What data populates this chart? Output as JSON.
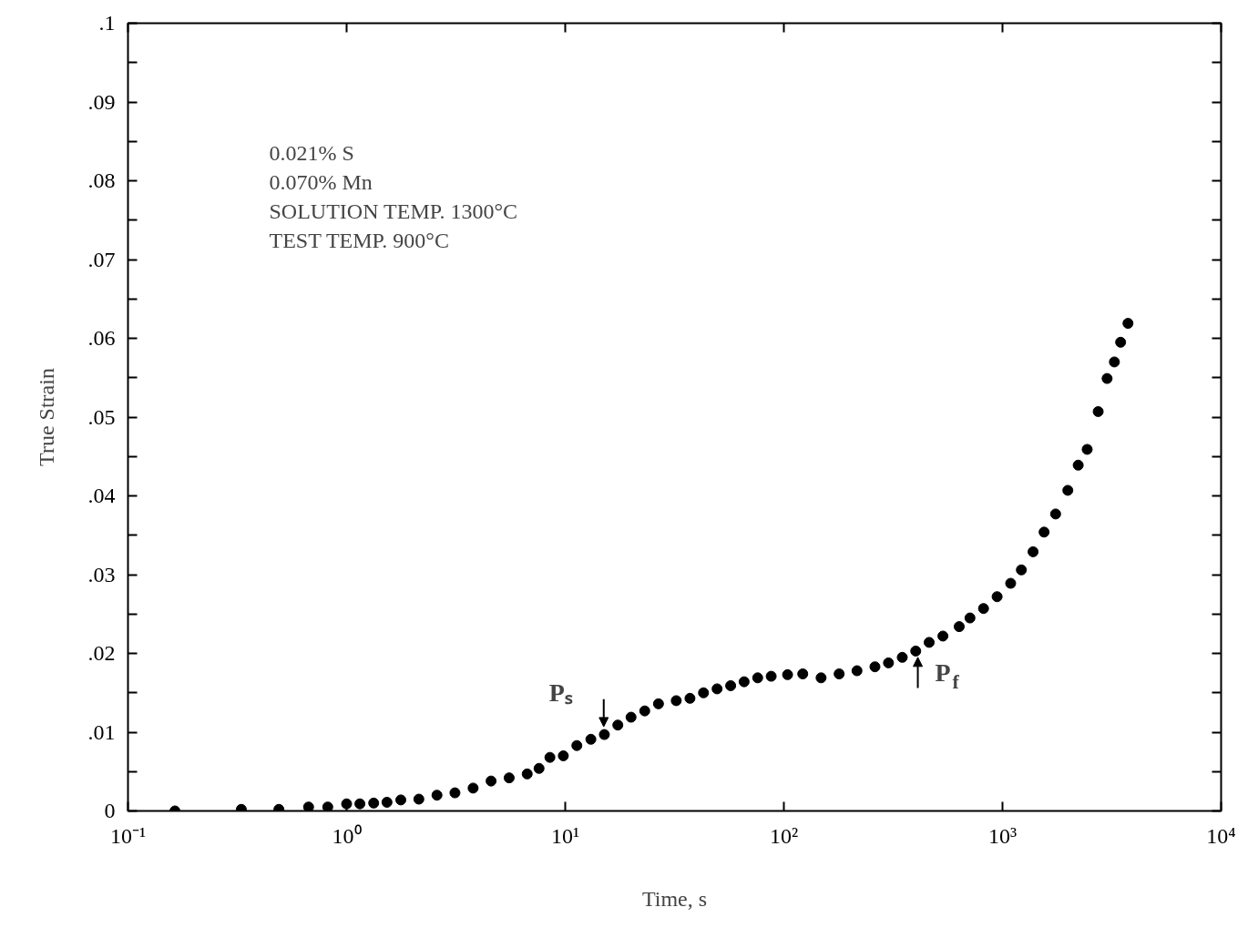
{
  "chart_data": {
    "type": "scatter",
    "xlabel": "Time, s",
    "ylabel": "True Strain",
    "log": "x",
    "grid": false,
    "marker": "circle",
    "xlim": [
      0.1,
      10000
    ],
    "ylim": [
      0,
      0.1
    ],
    "xticks": [
      {
        "value": 0.1,
        "label": "10⁻¹"
      },
      {
        "value": 1,
        "label": "10⁰"
      },
      {
        "value": 10,
        "label": "10¹"
      },
      {
        "value": 100,
        "label": "10²"
      },
      {
        "value": 1000,
        "label": "10³"
      },
      {
        "value": 10000,
        "label": "10⁴"
      }
    ],
    "yticks": [
      0,
      {
        "value": 0.005,
        "label": null
      },
      {
        "value": 0.01,
        "label": ".01"
      },
      {
        "value": 0.015,
        "label": null
      },
      {
        "value": 0.02,
        "label": ".02"
      },
      {
        "value": 0.025,
        "label": null
      },
      {
        "value": 0.03,
        "label": ".03"
      },
      {
        "value": 0.035,
        "label": null
      },
      {
        "value": 0.04,
        "label": ".04"
      },
      {
        "value": 0.045,
        "label": null
      },
      {
        "value": 0.05,
        "label": ".05"
      },
      {
        "value": 0.055,
        "label": null
      },
      {
        "value": 0.06,
        "label": ".06"
      },
      {
        "value": 0.065,
        "label": null
      },
      {
        "value": 0.07,
        "label": ".07"
      },
      {
        "value": 0.075,
        "label": null
      },
      {
        "value": 0.08,
        "label": ".08"
      },
      {
        "value": 0.085,
        "label": null
      },
      {
        "value": 0.09,
        "label": ".09"
      },
      {
        "value": 0.095,
        "label": null
      },
      {
        "value": 0.1,
        "label": ".1"
      }
    ],
    "annotations": [
      "0.021% S",
      "0.070% Mn",
      "SOLUTION TEMP. 1300°C",
      "TEST TEMP. 900°C",
      {
        "text": "Pₛ",
        "x": 15,
        "y": 0.0097
      },
      {
        "text": "P$_{f}$",
        "x": 410,
        "y": 0.0203
      }
    ],
    "series": [
      {
        "color": "#000000",
        "x": [
          0.164,
          0.33,
          0.49,
          0.67,
          0.82,
          1.0,
          1.15,
          1.33,
          1.53,
          1.77,
          2.14,
          2.59,
          3.13,
          3.79,
          4.58,
          5.54,
          6.7,
          7.59,
          8.51,
          9.8,
          11.3,
          13.1,
          15.1,
          17.4,
          20.0,
          23.1,
          26.7,
          32.2,
          37.2,
          42.9,
          49.5,
          57.1,
          65.8,
          75.9,
          87.5,
          104,
          122,
          148,
          179,
          216,
          261,
          301,
          348,
          401,
          462,
          534,
          634,
          710,
          819,
          945,
          1090,
          1220,
          1380,
          1550,
          1750,
          1990,
          2220,
          2440,
          2740,
          3010,
          3250,
          3470,
          3750
        ],
        "values": [
          0,
          0.0002,
          0.0002,
          0.0005,
          0.0005,
          0.0009,
          0.0009,
          0.001,
          0.0011,
          0.0014,
          0.0015,
          0.002,
          0.0023,
          0.0029,
          0.0038,
          0.0042,
          0.0047,
          0.0054,
          0.0068,
          0.007,
          0.0083,
          0.0091,
          0.0097,
          0.0109,
          0.0119,
          0.0127,
          0.0136,
          0.014,
          0.0143,
          0.015,
          0.0155,
          0.0159,
          0.0164,
          0.0169,
          0.0171,
          0.0173,
          0.0174,
          0.0169,
          0.0174,
          0.0178,
          0.0183,
          0.0188,
          0.0195,
          0.0203,
          0.0214,
          0.0222,
          0.0234,
          0.0245,
          0.0257,
          0.0272,
          0.0289,
          0.0306,
          0.0329,
          0.0354,
          0.0377,
          0.0407,
          0.0439,
          0.0459,
          0.0507,
          0.0549,
          0.057,
          0.0595,
          0.0619
        ]
      }
    ]
  }
}
